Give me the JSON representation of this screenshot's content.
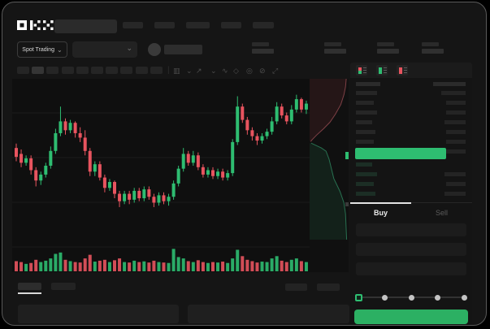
{
  "header": {
    "brand": "OKX",
    "nav_placeholders": [
      25,
      25,
      29,
      25,
      26
    ]
  },
  "subheader": {
    "market_type_label": "Spot Trading",
    "stats_count": 4
  },
  "chart_toolbar": {
    "timeframe_count": 10,
    "active_timeframe_index": 1,
    "tools": [
      "chart-type-icon",
      "chevron-down-icon",
      "compare-icon",
      "chevron-down-icon",
      "indicator-wave-icon",
      "draw-icon",
      "camera-icon",
      "hide-icon",
      "fullscreen-icon"
    ]
  },
  "orderbook": {
    "mode_icons": [
      "book-combined-icon",
      "book-bids-icon",
      "book-asks-icon"
    ],
    "ask_rows": 6,
    "bid_rows": 4,
    "right_column_rows": 7,
    "right_column_lower_rows": 3
  },
  "trade": {
    "buy_label": "Buy",
    "sell_label": "Sell",
    "active_tab": "Buy",
    "field_count": 3,
    "slider_steps": 5,
    "slider_active_step": 0
  },
  "colors": {
    "up": "#2ebd71",
    "down": "#e8545f",
    "accent_button": "#2cb063",
    "tab_indicator": "#e3e3e3"
  },
  "chart_data": {
    "type": "candlestick",
    "title": "",
    "price_scale_range": [
      0,
      100
    ],
    "grid": true,
    "candles": [
      [
        62,
        65,
        53,
        56
      ],
      [
        58,
        61,
        49,
        52
      ],
      [
        52,
        57,
        50,
        55
      ],
      [
        55,
        57,
        44,
        47
      ],
      [
        47,
        49,
        36,
        40
      ],
      [
        40,
        46,
        37,
        44
      ],
      [
        44,
        52,
        42,
        50
      ],
      [
        50,
        63,
        48,
        60
      ],
      [
        60,
        75,
        58,
        72
      ],
      [
        72,
        90,
        70,
        80
      ],
      [
        80,
        82,
        71,
        74
      ],
      [
        74,
        81,
        72,
        79
      ],
      [
        79,
        80,
        69,
        72
      ],
      [
        72,
        76,
        66,
        69
      ],
      [
        69,
        74,
        57,
        60
      ],
      [
        60,
        62,
        43,
        46
      ],
      [
        46,
        53,
        43,
        51
      ],
      [
        51,
        53,
        40,
        42
      ],
      [
        42,
        44,
        32,
        35
      ],
      [
        35,
        41,
        33,
        39
      ],
      [
        39,
        40,
        28,
        31
      ],
      [
        31,
        33,
        22,
        26
      ],
      [
        26,
        33,
        24,
        31
      ],
      [
        31,
        33,
        24,
        27
      ],
      [
        27,
        35,
        25,
        33
      ],
      [
        33,
        35,
        26,
        28
      ],
      [
        28,
        36,
        26,
        34
      ],
      [
        34,
        36,
        27,
        29
      ],
      [
        29,
        31,
        22,
        25
      ],
      [
        25,
        32,
        23,
        30
      ],
      [
        30,
        32,
        24,
        26
      ],
      [
        26,
        31,
        23,
        29
      ],
      [
        29,
        40,
        27,
        38
      ],
      [
        38,
        50,
        36,
        48
      ],
      [
        48,
        62,
        46,
        58
      ],
      [
        58,
        60,
        50,
        52
      ],
      [
        52,
        60,
        50,
        57
      ],
      [
        57,
        59,
        47,
        49
      ],
      [
        49,
        51,
        42,
        44
      ],
      [
        44,
        49,
        42,
        47
      ],
      [
        47,
        49,
        41,
        43
      ],
      [
        43,
        48,
        41,
        46
      ],
      [
        46,
        48,
        40,
        42
      ],
      [
        42,
        47,
        40,
        45
      ],
      [
        45,
        68,
        43,
        66
      ],
      [
        66,
        97,
        64,
        90
      ],
      [
        90,
        92,
        79,
        81
      ],
      [
        81,
        83,
        71,
        74
      ],
      [
        74,
        76,
        67,
        70
      ],
      [
        70,
        72,
        64,
        67
      ],
      [
        67,
        72,
        65,
        70
      ],
      [
        70,
        75,
        68,
        73
      ],
      [
        73,
        83,
        71,
        80
      ],
      [
        80,
        93,
        78,
        90
      ],
      [
        90,
        92,
        82,
        84
      ],
      [
        84,
        86,
        78,
        80
      ],
      [
        80,
        91,
        78,
        88
      ],
      [
        88,
        98,
        86,
        95
      ],
      [
        95,
        96,
        86,
        88
      ],
      [
        88,
        94,
        85,
        92
      ]
    ],
    "volume": [
      34,
      30,
      22,
      26,
      40,
      30,
      36,
      46,
      66,
      72,
      40,
      34,
      30,
      28,
      46,
      62,
      32,
      36,
      40,
      30,
      38,
      46,
      30,
      28,
      36,
      30,
      33,
      28,
      36,
      30,
      28,
      26,
      88,
      52,
      46,
      34,
      30,
      38,
      30,
      26,
      30,
      28,
      32,
      26,
      46,
      84,
      56,
      40,
      34,
      28,
      32,
      30,
      46,
      56,
      36,
      30,
      40,
      46,
      34,
      30
    ],
    "depth": {
      "orientation": "vertical",
      "asks_curve": [
        [
          0,
          0.94
        ],
        [
          0.05,
          0.92
        ],
        [
          0.1,
          0.88
        ],
        [
          0.16,
          0.8
        ],
        [
          0.22,
          0.66
        ],
        [
          0.27,
          0.52
        ],
        [
          0.31,
          0.36
        ],
        [
          0.35,
          0.18
        ],
        [
          0.38,
          0.06
        ],
        [
          0.39,
          0.03
        ]
      ],
      "bids_curve": [
        [
          0.4,
          0.04
        ],
        [
          0.43,
          0.3
        ],
        [
          0.45,
          0.42
        ],
        [
          0.5,
          0.5
        ],
        [
          0.56,
          0.56
        ],
        [
          0.62,
          0.62
        ],
        [
          0.7,
          0.78
        ],
        [
          0.77,
          0.88
        ],
        [
          0.84,
          0.92
        ],
        [
          1.0,
          0.95
        ]
      ]
    }
  }
}
